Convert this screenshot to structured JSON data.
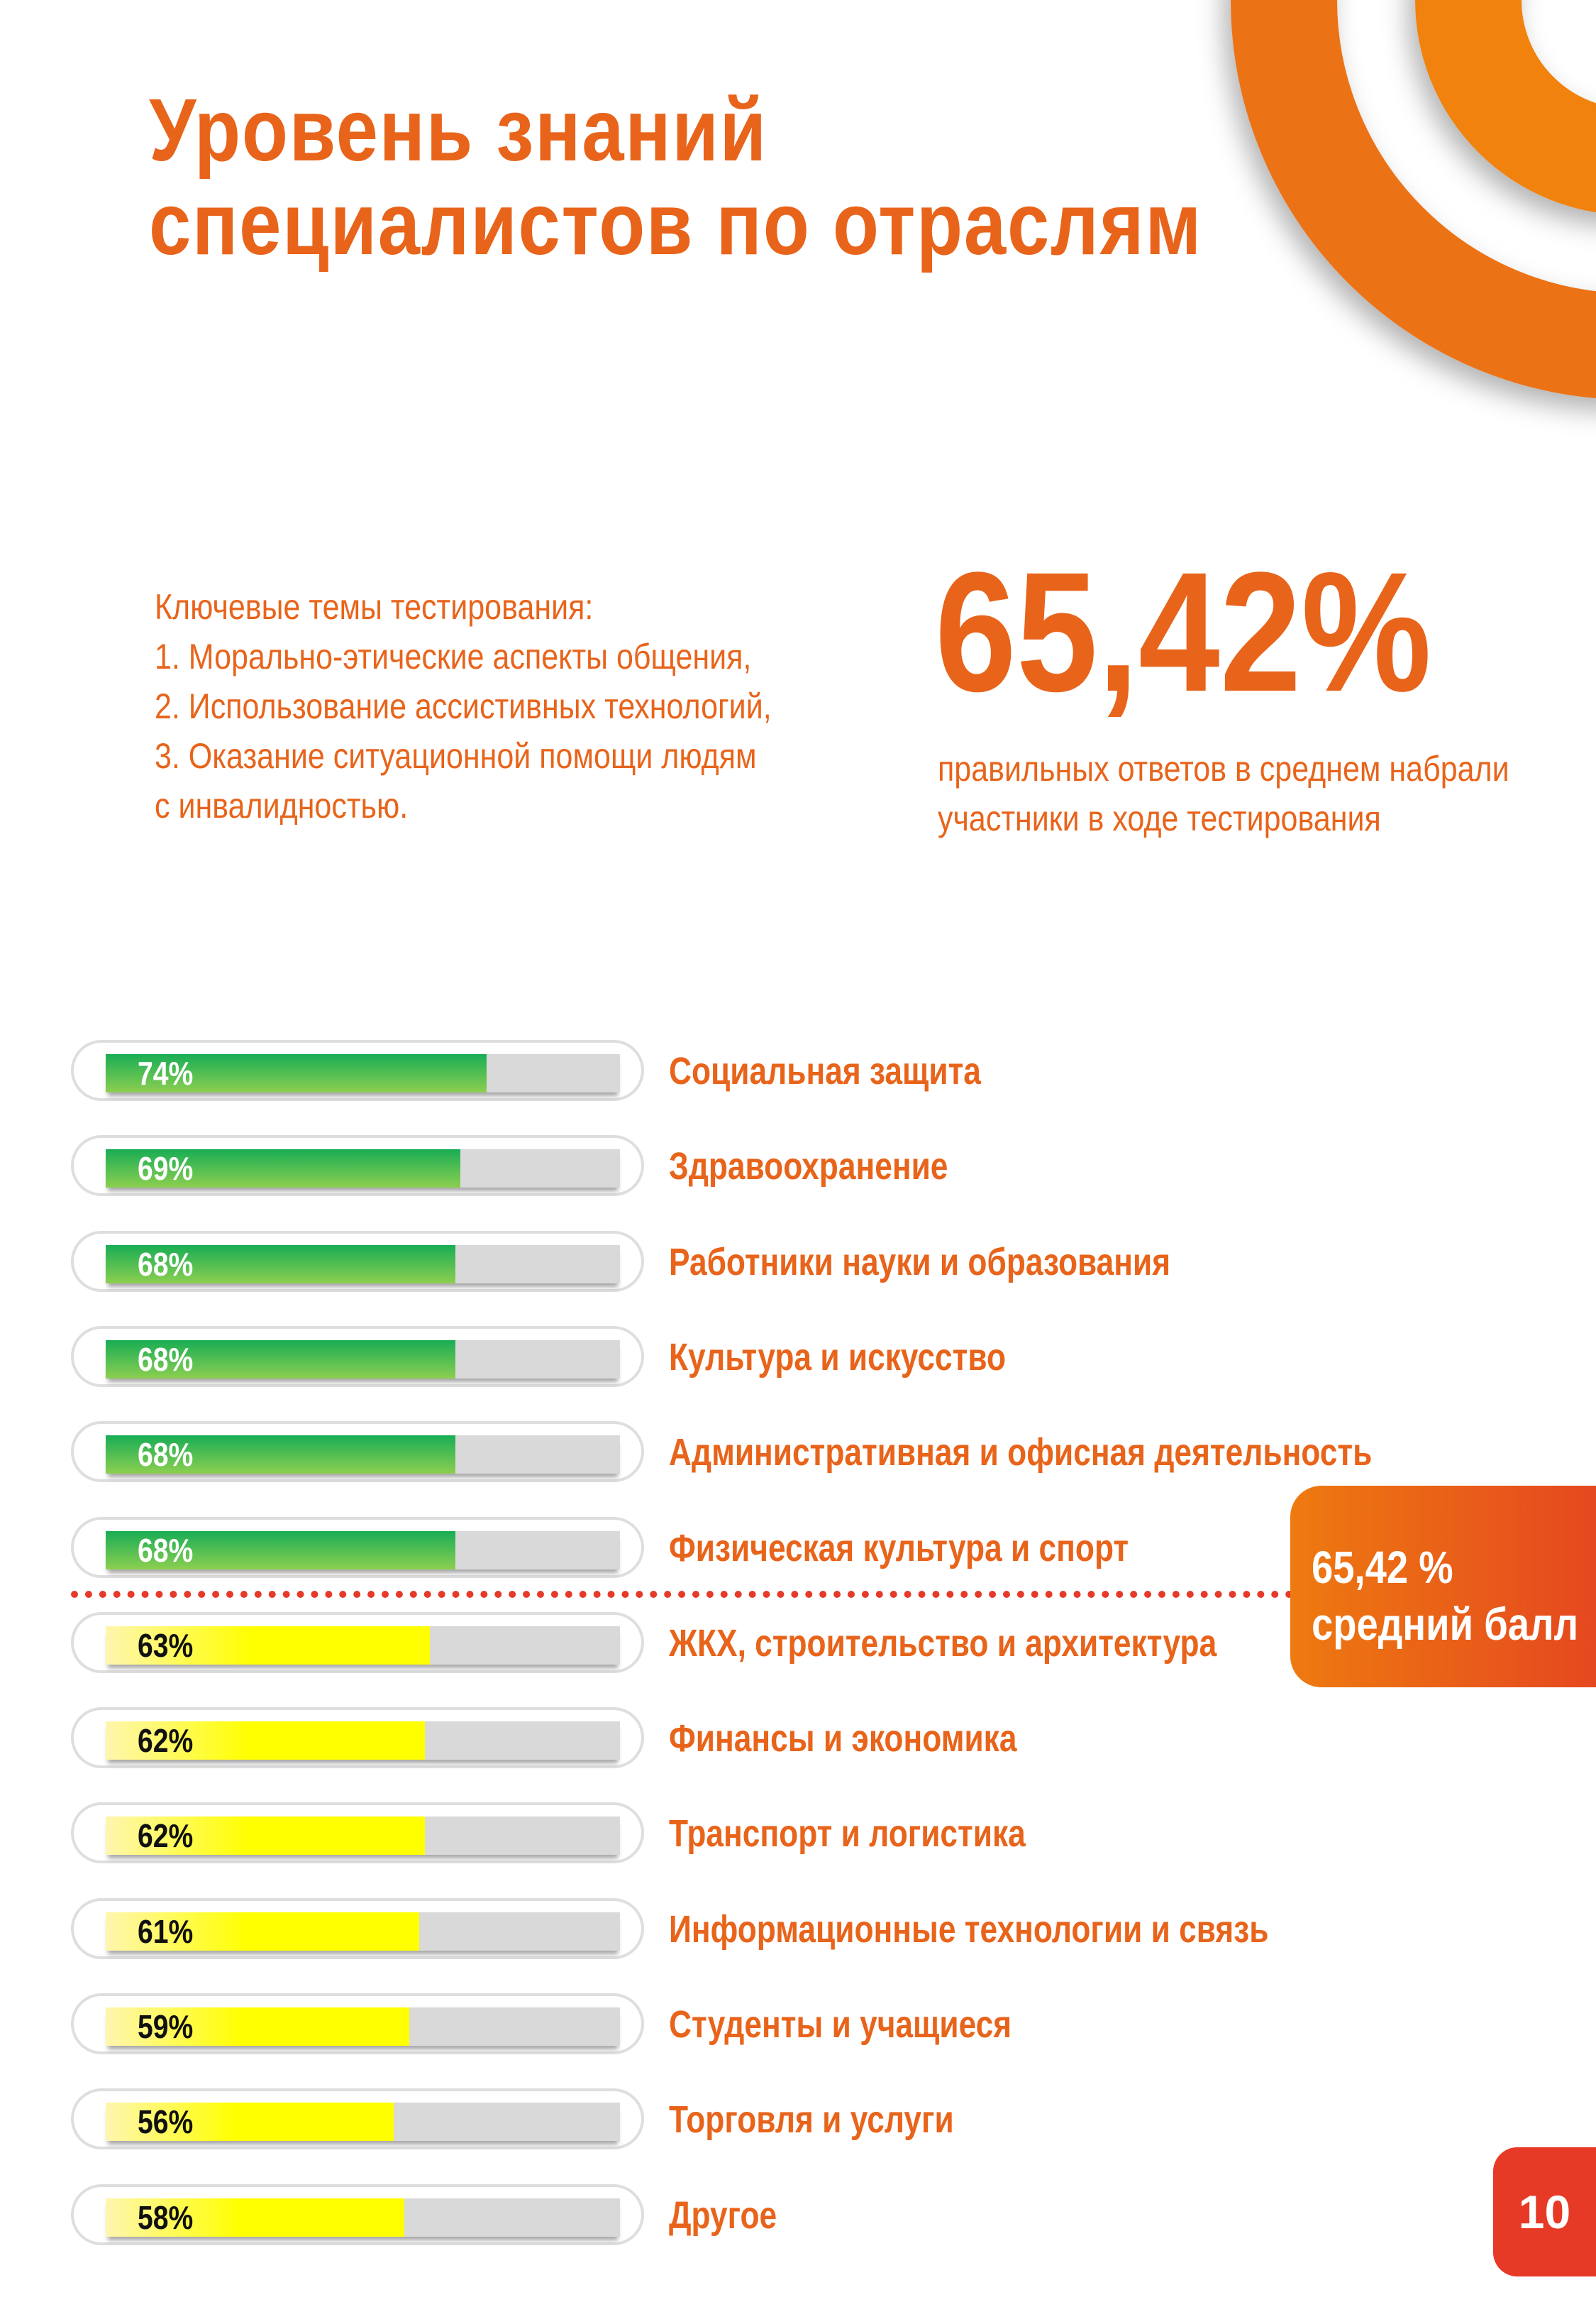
{
  "colors": {
    "accent": "#e8641b",
    "green_top": "#19ad55",
    "green_bottom": "#8ccf50",
    "yellow": "#ffff00",
    "track": "#d9d9d9",
    "avg_line": "#e53a2a",
    "page_badge": "#e63a26"
  },
  "header": {
    "title_line1": "Уровень знаний",
    "title_line2": "специалистов по отраслям"
  },
  "intro": {
    "lines": [
      "Ключевые темы тестирования:",
      "1. Морально-этические аспекты общения,",
      "2. Использование ассистивных технологий,",
      "3. Оказание ситуационной помощи людям",
      "с инвалидностью."
    ]
  },
  "summary": {
    "value": "65,42%",
    "caption_line1": "правильных ответов в среднем набрали",
    "caption_line2": "участники в ходе тестирования"
  },
  "average_badge": {
    "value": "65,42 %",
    "label": "средний балл"
  },
  "page_number": "10",
  "chart_data": {
    "type": "bar",
    "orientation": "horizontal",
    "xlim": [
      0,
      100
    ],
    "unit": "%",
    "average": 65.42,
    "categories": [
      "Социальная защита",
      "Здравоохранение",
      "Работники науки и образования",
      "Культура и искусство",
      "Административная и офисная деятельность",
      "Физическая культура и спорт",
      "ЖКХ, строительство и архитектура",
      "Финансы и экономика",
      "Транспорт и логистика",
      "Информационные технологии и связь",
      "Студенты и учащиеся",
      "Торговля и услуги",
      "Другое"
    ],
    "values": [
      74,
      69,
      68,
      68,
      68,
      68,
      63,
      62,
      62,
      61,
      59,
      56,
      58
    ],
    "labels": [
      "74%",
      "69%",
      "68%",
      "68%",
      "68%",
      "68%",
      "63%",
      "62%",
      "62%",
      "61%",
      "59%",
      "56%",
      "58%"
    ],
    "color_rule": "green above average, yellow below average"
  }
}
